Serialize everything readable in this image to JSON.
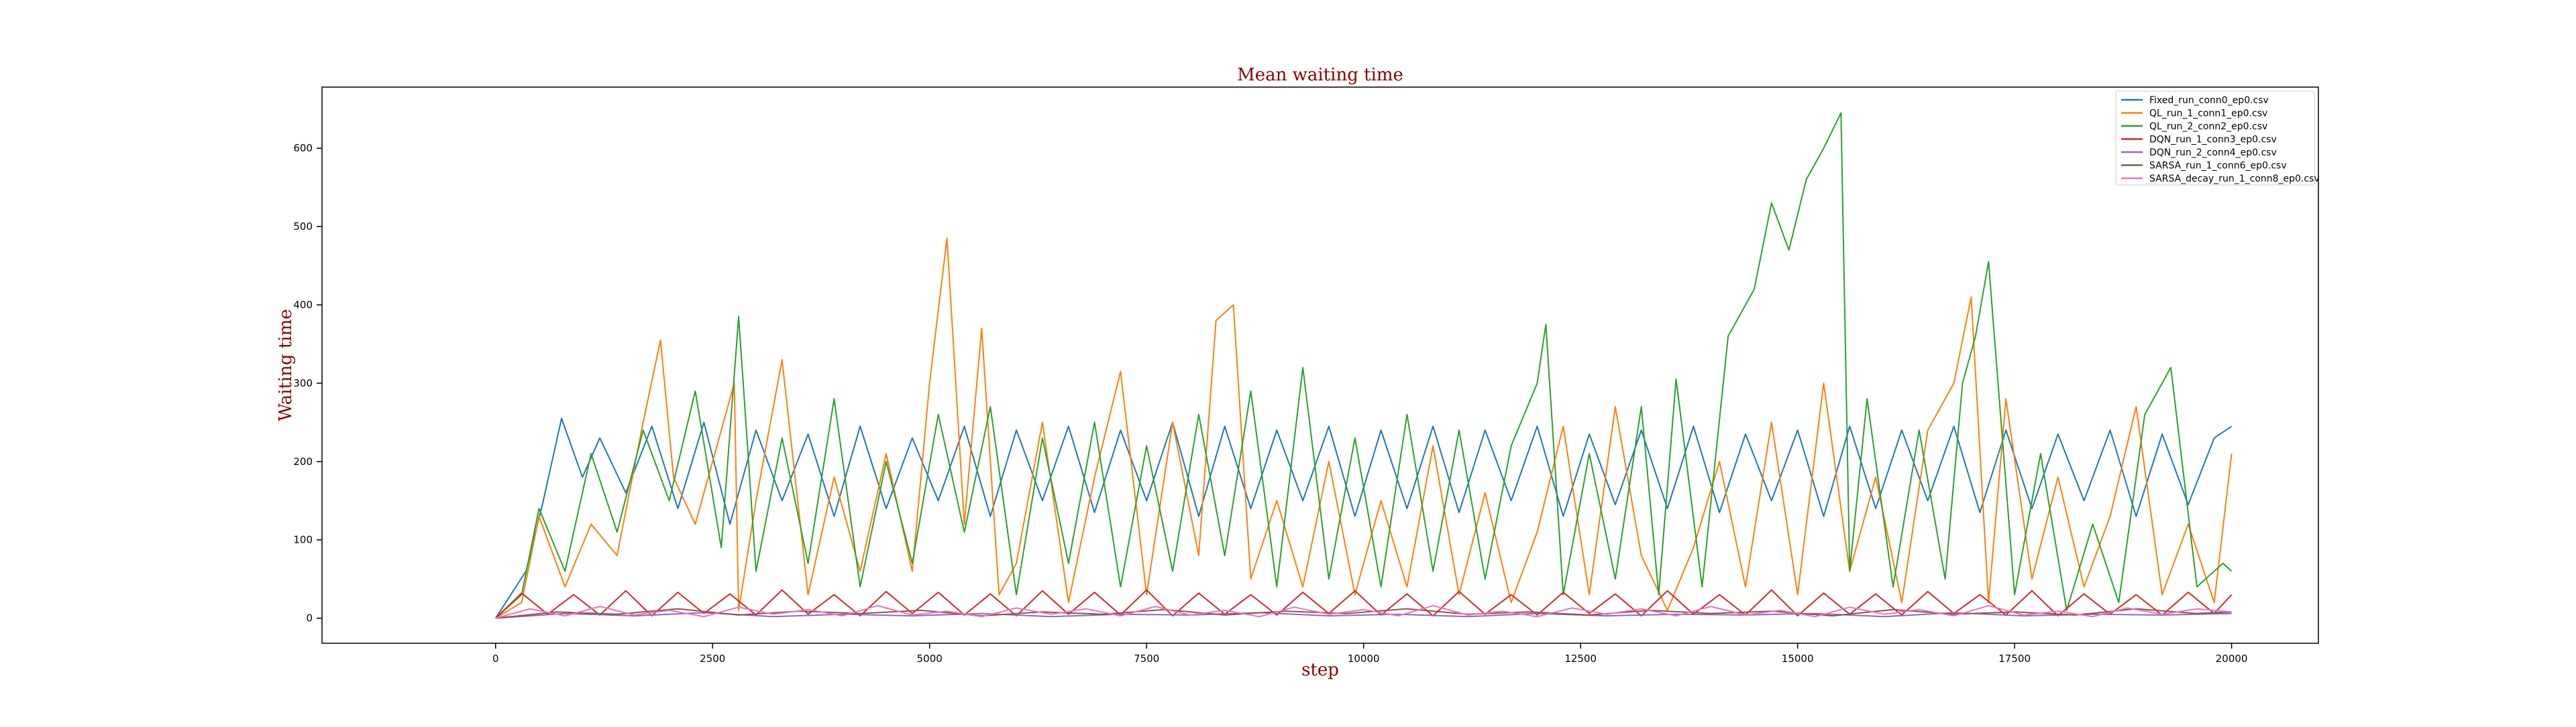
{
  "chart_data": {
    "type": "line",
    "title": "Mean waiting time",
    "xlabel": "step",
    "ylabel": "Waiting time",
    "xlim": [
      -2000,
      21000
    ],
    "ylim": [
      -32,
      678
    ],
    "xticks": [
      0,
      2500,
      5000,
      7500,
      10000,
      12500,
      15000,
      17500,
      20000
    ],
    "yticks": [
      0,
      100,
      200,
      300,
      400,
      500,
      600
    ],
    "grid": false,
    "legend_position": "top-right",
    "label_color": "#8b0000",
    "series": [
      {
        "name": "Fixed_run_conn0_ep0.csv",
        "color": "#1f77b4",
        "x": [
          0,
          350,
          550,
          760,
          1000,
          1200,
          1500,
          1800,
          2100,
          2400,
          2700,
          3000,
          3300,
          3600,
          3900,
          4200,
          4500,
          4800,
          5100,
          5400,
          5700,
          6000,
          6300,
          6600,
          6900,
          7200,
          7500,
          7800,
          8100,
          8400,
          8700,
          9000,
          9300,
          9600,
          9900,
          10200,
          10500,
          10800,
          11100,
          11400,
          11700,
          12000,
          12300,
          12600,
          12900,
          13200,
          13500,
          13800,
          14100,
          14400,
          14700,
          15000,
          15300,
          15600,
          15900,
          16200,
          16500,
          16800,
          17100,
          17400,
          17700,
          18000,
          18300,
          18600,
          18900,
          19200,
          19500,
          19800,
          20000
        ],
        "y": [
          0,
          60,
          150,
          255,
          180,
          230,
          160,
          245,
          140,
          250,
          120,
          240,
          150,
          235,
          130,
          245,
          140,
          230,
          150,
          245,
          130,
          240,
          150,
          245,
          135,
          240,
          150,
          250,
          130,
          245,
          140,
          240,
          150,
          245,
          130,
          240,
          140,
          245,
          135,
          240,
          150,
          245,
          130,
          235,
          145,
          240,
          140,
          245,
          135,
          235,
          150,
          240,
          130,
          245,
          140,
          240,
          150,
          245,
          135,
          240,
          140,
          235,
          150,
          240,
          130,
          235,
          145,
          230,
          245
        ]
      },
      {
        "name": "QL_run_1_conn1_ep0.csv",
        "color": "#ff7f0e",
        "x": [
          0,
          300,
          500,
          800,
          1100,
          1400,
          1700,
          1900,
          2050,
          2300,
          2600,
          2750,
          2800,
          3000,
          3300,
          3600,
          3900,
          4200,
          4500,
          4800,
          5000,
          5200,
          5400,
          5600,
          5800,
          6000,
          6300,
          6600,
          6900,
          7200,
          7500,
          7800,
          8100,
          8300,
          8500,
          8700,
          9000,
          9300,
          9600,
          9900,
          10200,
          10500,
          10800,
          11100,
          11400,
          11700,
          12000,
          12300,
          12600,
          12900,
          13200,
          13500,
          13800,
          14100,
          14400,
          14700,
          15000,
          15300,
          15600,
          15900,
          16200,
          16500,
          16800,
          17000,
          17200,
          17400,
          17700,
          18000,
          18300,
          18600,
          18900,
          19200,
          19500,
          19800,
          20000
        ],
        "y": [
          0,
          20,
          130,
          40,
          120,
          80,
          250,
          355,
          180,
          120,
          240,
          300,
          10,
          150,
          330,
          30,
          180,
          60,
          210,
          60,
          300,
          485,
          120,
          370,
          30,
          70,
          250,
          20,
          180,
          315,
          30,
          250,
          80,
          380,
          400,
          50,
          150,
          40,
          200,
          30,
          150,
          40,
          220,
          30,
          160,
          20,
          110,
          245,
          30,
          270,
          80,
          10,
          90,
          200,
          40,
          250,
          30,
          300,
          60,
          180,
          20,
          240,
          300,
          410,
          20,
          280,
          50,
          180,
          40,
          130,
          270,
          30,
          120,
          20,
          210
        ]
      },
      {
        "name": "QL_run_2_conn2_ep0.csv",
        "color": "#2ca02c",
        "x": [
          0,
          300,
          500,
          800,
          1100,
          1400,
          1700,
          2000,
          2300,
          2600,
          2800,
          3000,
          3300,
          3600,
          3900,
          4200,
          4500,
          4800,
          5100,
          5400,
          5700,
          6000,
          6300,
          6600,
          6900,
          7200,
          7500,
          7800,
          8100,
          8400,
          8700,
          9000,
          9300,
          9600,
          9900,
          10200,
          10500,
          10800,
          11100,
          11400,
          11700,
          12000,
          12100,
          12300,
          12600,
          12900,
          13200,
          13400,
          13600,
          13900,
          14200,
          14500,
          14700,
          14900,
          15100,
          15300,
          15500,
          15600,
          15800,
          16100,
          16400,
          16700,
          16900,
          17050,
          17200,
          17500,
          17800,
          18100,
          18400,
          18700,
          19000,
          19300,
          19600,
          19900,
          20000
        ],
        "y": [
          0,
          30,
          140,
          60,
          210,
          110,
          240,
          150,
          290,
          90,
          385,
          60,
          230,
          70,
          280,
          40,
          200,
          70,
          260,
          110,
          270,
          30,
          230,
          70,
          250,
          40,
          220,
          60,
          260,
          80,
          290,
          40,
          320,
          50,
          230,
          40,
          260,
          60,
          240,
          50,
          220,
          300,
          375,
          30,
          210,
          50,
          270,
          30,
          305,
          40,
          360,
          420,
          530,
          470,
          560,
          600,
          645,
          60,
          280,
          40,
          240,
          50,
          300,
          360,
          455,
          30,
          210,
          10,
          120,
          20,
          260,
          320,
          40,
          70,
          60
        ]
      },
      {
        "name": "DQN_run_1_conn3_ep0.csv",
        "color": "#d62728",
        "x": [
          0,
          300,
          600,
          900,
          1200,
          1500,
          1800,
          2100,
          2400,
          2700,
          3000,
          3300,
          3600,
          3900,
          4200,
          4500,
          4800,
          5100,
          5400,
          5700,
          6000,
          6300,
          6600,
          6900,
          7200,
          7500,
          7800,
          8100,
          8400,
          8700,
          9000,
          9300,
          9600,
          9900,
          10200,
          10500,
          10800,
          11100,
          11400,
          11700,
          12000,
          12300,
          12600,
          12900,
          13200,
          13500,
          13800,
          14100,
          14400,
          14700,
          15000,
          15300,
          15600,
          15900,
          16200,
          16500,
          16800,
          17100,
          17400,
          17700,
          18000,
          18300,
          18600,
          18900,
          19200,
          19500,
          19800,
          20000
        ],
        "y": [
          0,
          32,
          5,
          30,
          4,
          35,
          3,
          33,
          6,
          31,
          4,
          36,
          5,
          30,
          3,
          34,
          6,
          33,
          4,
          31,
          3,
          35,
          5,
          33,
          4,
          36,
          3,
          32,
          5,
          30,
          4,
          33,
          6,
          35,
          4,
          31,
          3,
          34,
          5,
          30,
          4,
          33,
          6,
          31,
          3,
          35,
          5,
          30,
          4,
          36,
          3,
          32,
          5,
          31,
          4,
          34,
          6,
          30,
          4,
          35,
          3,
          31,
          5,
          30,
          4,
          33,
          6,
          30
        ]
      },
      {
        "name": "DQN_run_2_conn4_ep0.csv",
        "color": "#9467bd",
        "x": [
          0,
          800,
          1600,
          2400,
          3200,
          4000,
          4800,
          5600,
          6400,
          7200,
          8000,
          8800,
          9600,
          10400,
          11200,
          12000,
          12800,
          13600,
          14400,
          15200,
          16000,
          16800,
          17600,
          18400,
          19200,
          20000
        ],
        "y": [
          0,
          6,
          3,
          7,
          2,
          5,
          3,
          6,
          2,
          5,
          4,
          7,
          3,
          5,
          2,
          6,
          3,
          5,
          4,
          6,
          2,
          7,
          3,
          5,
          4,
          6
        ]
      },
      {
        "name": "SARSA_run_1_conn6_ep0.csv",
        "color": "#8c564b",
        "x": [
          0,
          700,
          1400,
          2100,
          2800,
          3500,
          4200,
          4900,
          5600,
          6300,
          7000,
          7700,
          8400,
          9100,
          9800,
          10500,
          11200,
          11900,
          12600,
          13300,
          14000,
          14700,
          15400,
          16100,
          16800,
          17500,
          18200,
          18900,
          19600,
          20000
        ],
        "y": [
          0,
          8,
          5,
          12,
          4,
          9,
          6,
          10,
          3,
          8,
          5,
          11,
          4,
          9,
          6,
          12,
          5,
          8,
          4,
          10,
          6,
          9,
          3,
          11,
          5,
          8,
          4,
          12,
          6,
          8
        ]
      },
      {
        "name": "SARSA_decay_run_1_conn8_ep0.csv",
        "color": "#e377c2",
        "x": [
          0,
          400,
          800,
          1200,
          1600,
          2000,
          2400,
          2800,
          3200,
          3600,
          4000,
          4400,
          4800,
          5200,
          5600,
          6000,
          6400,
          6800,
          7200,
          7600,
          8000,
          8400,
          8800,
          9200,
          9600,
          10000,
          10400,
          10800,
          11200,
          11600,
          12000,
          12400,
          12800,
          13200,
          13600,
          14000,
          14400,
          14800,
          15200,
          15600,
          16000,
          16400,
          16800,
          17200,
          17600,
          18000,
          18400,
          18800,
          19200,
          19600,
          20000
        ],
        "y": [
          0,
          12,
          3,
          15,
          4,
          10,
          2,
          14,
          5,
          11,
          3,
          16,
          4,
          9,
          2,
          13,
          5,
          12,
          3,
          15,
          4,
          10,
          2,
          14,
          5,
          11,
          3,
          16,
          4,
          9,
          2,
          13,
          5,
          12,
          3,
          15,
          4,
          10,
          2,
          14,
          5,
          11,
          3,
          16,
          4,
          9,
          2,
          13,
          5,
          12,
          8
        ]
      }
    ]
  }
}
